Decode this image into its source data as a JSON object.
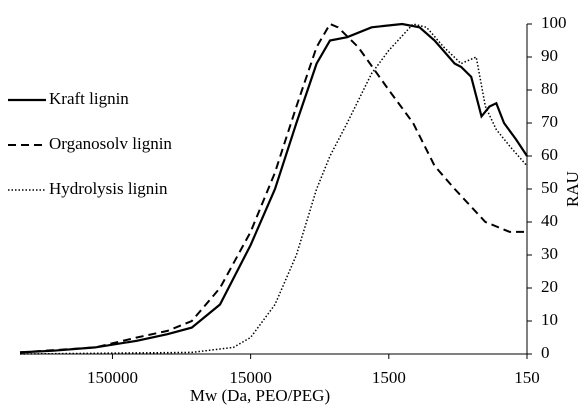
{
  "chart_data": {
    "type": "line",
    "x_label": "Mw (Da, PEO/PEG)",
    "y_label": "RAU",
    "xlim": [
      700000,
      150
    ],
    "x_scale": "log",
    "xticks": [
      150000,
      15000,
      1500,
      150
    ],
    "ylim": [
      0,
      100
    ],
    "yticks": [
      0,
      10,
      20,
      30,
      40,
      50,
      60,
      70,
      80,
      90,
      100
    ],
    "y_axis_side": "right",
    "legend": "left",
    "series": [
      {
        "name": "Kraft lignin",
        "color": "#000000",
        "line_style": "solid",
        "x": [
          700000,
          400000,
          200000,
          100000,
          60000,
          40000,
          25000,
          15000,
          10000,
          7000,
          5000,
          4000,
          3000,
          2000,
          1200,
          900,
          700,
          500,
          450,
          380,
          320,
          280,
          250,
          220,
          180,
          150
        ],
        "values": [
          0.5,
          1,
          2,
          4,
          6,
          8,
          15,
          33,
          50,
          70,
          88,
          95,
          96,
          99,
          100,
          99,
          95,
          88,
          87,
          84,
          72,
          75,
          76,
          70,
          65,
          60
        ]
      },
      {
        "name": "Organosolv lignin",
        "color": "#000000",
        "line_style": "dashed",
        "x": [
          700000,
          200000,
          100000,
          60000,
          40000,
          25000,
          15000,
          10000,
          7000,
          5000,
          4000,
          3500,
          2500,
          1500,
          1000,
          700,
          500,
          300,
          200,
          150
        ],
        "values": [
          0.5,
          2,
          5,
          7,
          10,
          20,
          37,
          55,
          75,
          93,
          100,
          99,
          93,
          80,
          70,
          57,
          50,
          40,
          37,
          37
        ]
      },
      {
        "name": "Hydrolysis lignin",
        "color": "#000000",
        "line_style": "dotted",
        "x": [
          700000,
          40000,
          20000,
          15000,
          10000,
          7000,
          5000,
          4000,
          3000,
          2000,
          1500,
          1000,
          800,
          600,
          450,
          350,
          300,
          250,
          200,
          150
        ],
        "values": [
          0,
          0.5,
          2,
          5,
          15,
          30,
          50,
          60,
          70,
          85,
          92,
          100,
          99,
          93,
          88,
          90,
          75,
          68,
          63,
          57
        ]
      }
    ]
  }
}
